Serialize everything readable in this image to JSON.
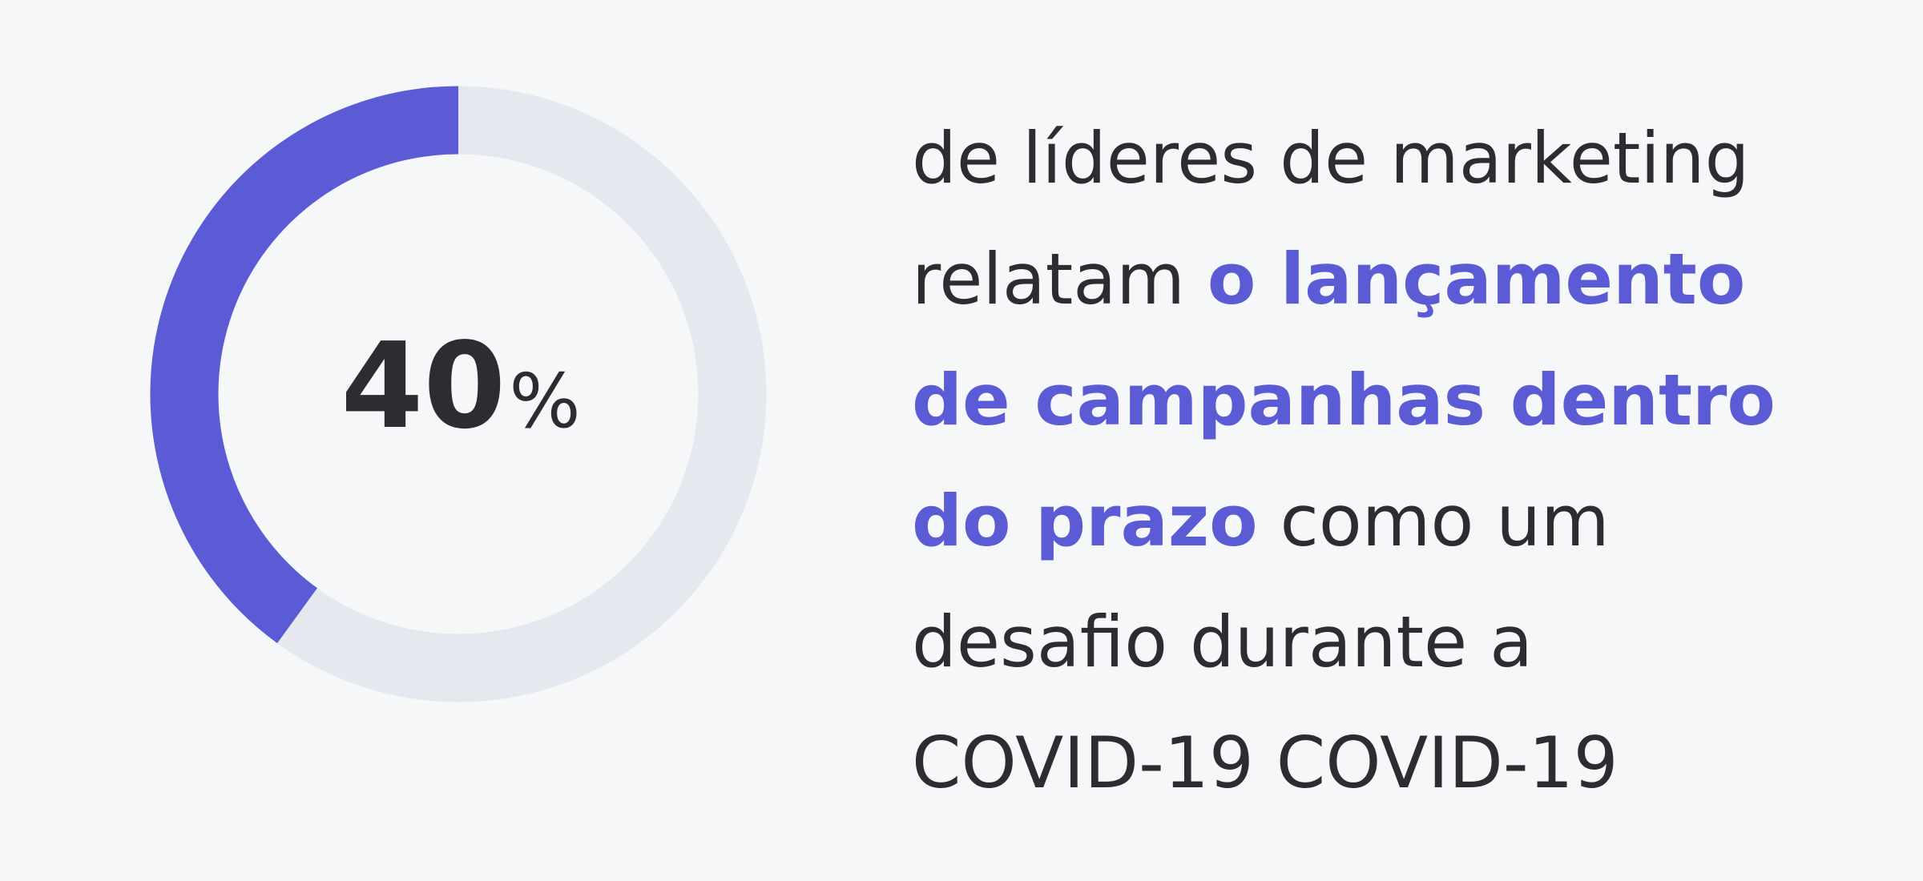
{
  "chart_data": {
    "type": "pie",
    "variant": "donut",
    "value_percent": 40,
    "remainder_percent": 60,
    "center_label": {
      "number": "40",
      "unit": "%"
    },
    "colors": {
      "value": "#5b5bd6",
      "remainder": "#e6e8f0",
      "center_text": "#2c2d30"
    }
  },
  "statement": {
    "lines": [
      [
        {
          "text": "de líderes de marketing",
          "highlight": false
        }
      ],
      [
        {
          "text": "relatam ",
          "highlight": false
        },
        {
          "text": "o lançamento",
          "highlight": true
        }
      ],
      [
        {
          "text": "de campanhas dentro",
          "highlight": true
        }
      ],
      [
        {
          "text": "do prazo",
          "highlight": true
        },
        {
          "text": " como um",
          "highlight": false
        }
      ],
      [
        {
          "text": "desafio durante a",
          "highlight": false
        }
      ],
      [
        {
          "text": "COVID-19 COVID-19",
          "highlight": false
        }
      ]
    ],
    "colors": {
      "text": "#2c2d30",
      "highlight": "#5b5bd6"
    }
  }
}
